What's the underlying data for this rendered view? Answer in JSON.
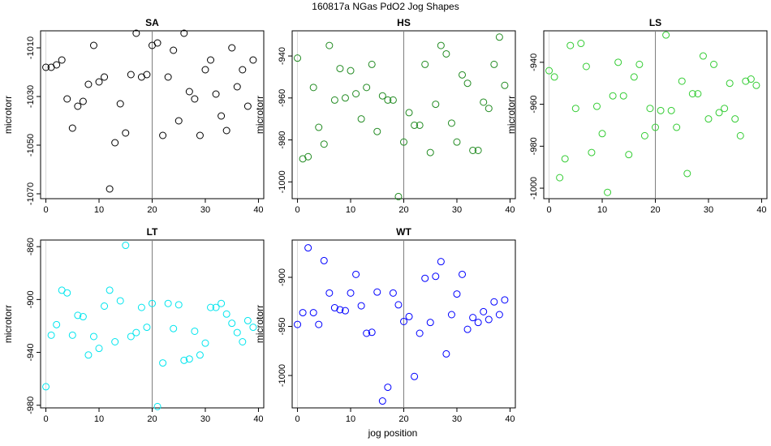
{
  "figure": {
    "title": "160817a    NGas PdO2 Jog Shapes",
    "xlabel": "jog position"
  },
  "chart_data": [
    {
      "type": "scatter",
      "title": "SA",
      "ylabel": "microtorr",
      "color": "#000000",
      "xlim": [
        -1,
        41
      ],
      "ylim": [
        -1072,
        -1003
      ],
      "yticks": [
        -1010,
        -1030,
        -1050,
        -1070
      ],
      "xticks": [
        0,
        10,
        20,
        30,
        40
      ],
      "vline": 20,
      "x": [
        0,
        1,
        2,
        3,
        4,
        5,
        6,
        7,
        8,
        9,
        10,
        11,
        12,
        13,
        14,
        15,
        16,
        17,
        18,
        19,
        20,
        21,
        22,
        23,
        24,
        25,
        26,
        27,
        28,
        29,
        30,
        31,
        32,
        33,
        34,
        35,
        36,
        37,
        38,
        39
      ],
      "y": [
        -1018,
        -1018,
        -1017,
        -1015,
        -1031,
        -1043,
        -1034,
        -1032,
        -1025,
        -1009,
        -1024,
        -1022,
        -1068,
        -1049,
        -1033,
        -1045,
        -1021,
        -1004,
        -1022,
        -1021,
        -1009,
        -1008,
        -1046,
        -1022,
        -1011,
        -1040,
        -1004,
        -1028,
        -1031,
        -1046,
        -1019,
        -1015,
        -1029,
        -1038,
        -1044,
        -1010,
        -1026,
        -1019,
        -1034,
        -1015
      ]
    },
    {
      "type": "scatter",
      "title": "HS",
      "ylabel": "microtorr",
      "color": "#228B22",
      "xlim": [
        -1,
        41
      ],
      "ylim": [
        -1008,
        -928
      ],
      "yticks": [
        -940,
        -960,
        -980,
        -1000
      ],
      "xticks": [
        0,
        10,
        20,
        30,
        40
      ],
      "vline": 20,
      "x": [
        0,
        1,
        2,
        3,
        4,
        5,
        6,
        7,
        8,
        9,
        10,
        11,
        12,
        13,
        14,
        15,
        16,
        17,
        18,
        19,
        20,
        21,
        22,
        23,
        24,
        25,
        26,
        27,
        28,
        29,
        30,
        31,
        32,
        33,
        34,
        35,
        36,
        37,
        38,
        39
      ],
      "y": [
        -941,
        -989,
        -988,
        -955,
        -974,
        -982,
        -935,
        -961,
        -946,
        -960,
        -947,
        -958,
        -970,
        -955,
        -944,
        -976,
        -959,
        -961,
        -961,
        -1007,
        -981,
        -967,
        -973,
        -973,
        -944,
        -986,
        -963,
        -935,
        -939,
        -972,
        -981,
        -949,
        -953,
        -985,
        -985,
        -962,
        -965,
        -944,
        -931,
        -954
      ]
    },
    {
      "type": "scatter",
      "title": "LS",
      "ylabel": "microtorr",
      "color": "#33CC33",
      "xlim": [
        -1,
        41
      ],
      "ylim": [
        -1005,
        -925
      ],
      "yticks": [
        -940,
        -960,
        -980,
        -1000
      ],
      "xticks": [
        0,
        10,
        20,
        30,
        40
      ],
      "vline": 20,
      "x": [
        0,
        1,
        2,
        3,
        4,
        5,
        6,
        7,
        8,
        9,
        10,
        11,
        12,
        13,
        14,
        15,
        16,
        17,
        18,
        19,
        20,
        21,
        22,
        23,
        24,
        25,
        26,
        27,
        28,
        29,
        30,
        31,
        32,
        33,
        34,
        35,
        36,
        37,
        38,
        39
      ],
      "y": [
        -944,
        -947,
        -995,
        -986,
        -932,
        -962,
        -931,
        -942,
        -983,
        -961,
        -974,
        -1002,
        -956,
        -940,
        -956,
        -984,
        -947,
        -941,
        -975,
        -962,
        -971,
        -963,
        -927,
        -963,
        -971,
        -949,
        -993,
        -955,
        -955,
        -937,
        -967,
        -941,
        -964,
        -962,
        -950,
        -967,
        -975,
        -949,
        -948,
        -951
      ]
    },
    {
      "type": "scatter",
      "title": "LT",
      "ylabel": "microtorr",
      "color": "#00E5EE",
      "xlim": [
        -1,
        41
      ],
      "ylim": [
        -982,
        -855
      ],
      "yticks": [
        -860,
        -900,
        -940,
        -980
      ],
      "xticks": [
        0,
        10,
        20,
        30,
        40
      ],
      "vline": 20,
      "x": [
        0,
        1,
        2,
        3,
        4,
        5,
        6,
        7,
        8,
        9,
        10,
        11,
        12,
        13,
        14,
        15,
        16,
        17,
        18,
        19,
        20,
        21,
        22,
        23,
        24,
        25,
        26,
        27,
        28,
        29,
        30,
        31,
        32,
        33,
        34,
        35,
        36,
        37,
        38,
        39
      ],
      "y": [
        -966,
        -927,
        -919,
        -893,
        -895,
        -927,
        -912,
        -913,
        -942,
        -928,
        -937,
        -905,
        -893,
        -932,
        -901,
        -859,
        -928,
        -925,
        -906,
        -921,
        -903,
        -981,
        -948,
        -903,
        -922,
        -904,
        -946,
        -945,
        -924,
        -942,
        -933,
        -906,
        -906,
        -903,
        -911,
        -918,
        -925,
        -932,
        -916,
        -921
      ]
    },
    {
      "type": "scatter",
      "title": "WT",
      "ylabel": "microtorr",
      "color": "#0000FF",
      "xlim": [
        -1,
        41
      ],
      "ylim": [
        -1033,
        -862
      ],
      "yticks": [
        -900,
        -950,
        -1000
      ],
      "xticks": [
        0,
        10,
        20,
        30,
        40
      ],
      "vline": 20,
      "x": [
        0,
        1,
        2,
        3,
        4,
        5,
        6,
        7,
        8,
        9,
        10,
        11,
        12,
        13,
        14,
        15,
        16,
        17,
        18,
        19,
        20,
        21,
        22,
        23,
        24,
        25,
        26,
        27,
        28,
        29,
        30,
        31,
        32,
        33,
        34,
        35,
        36,
        37,
        38,
        39
      ],
      "y": [
        -948,
        -936,
        -870,
        -936,
        -948,
        -883,
        -916,
        -931,
        -933,
        -934,
        -916,
        -897,
        -929,
        -957,
        -956,
        -915,
        -1026,
        -1012,
        -916,
        -928,
        -945,
        -940,
        -1001,
        -957,
        -901,
        -946,
        -899,
        -884,
        -978,
        -938,
        -917,
        -897,
        -953,
        -941,
        -946,
        -935,
        -943,
        -925,
        -938,
        -923
      ]
    }
  ]
}
